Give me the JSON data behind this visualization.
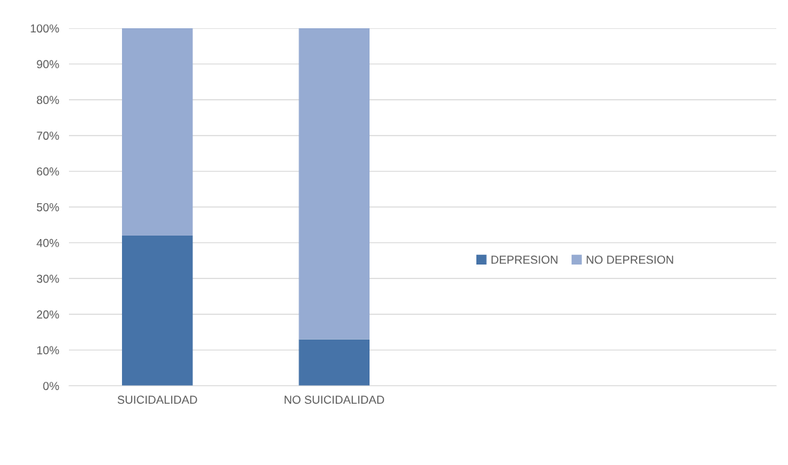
{
  "chart_data": {
    "type": "bar",
    "stacked": true,
    "categories": [
      "SUICIDALIDAD",
      "NO SUICIDALIDAD",
      null,
      null
    ],
    "series": [
      {
        "name": "DEPRESION",
        "color": "#4673a8",
        "values": [
          42,
          13,
          null,
          null
        ]
      },
      {
        "name": "NO DEPRESION",
        "color": "#96abd2",
        "values": [
          58,
          87,
          null,
          null
        ]
      }
    ],
    "ylim": [
      0,
      100
    ],
    "yticks": [
      {
        "value": 0,
        "label": "0%"
      },
      {
        "value": 10,
        "label": "10%"
      },
      {
        "value": 20,
        "label": "20%"
      },
      {
        "value": 30,
        "label": "30%"
      },
      {
        "value": 40,
        "label": "40%"
      },
      {
        "value": 50,
        "label": "50%"
      },
      {
        "value": 60,
        "label": "60%"
      },
      {
        "value": 70,
        "label": "70%"
      },
      {
        "value": 80,
        "label": "80%"
      },
      {
        "value": 90,
        "label": "90%"
      },
      {
        "value": 100,
        "label": "100%"
      }
    ],
    "grid": "y",
    "legend": "right"
  }
}
